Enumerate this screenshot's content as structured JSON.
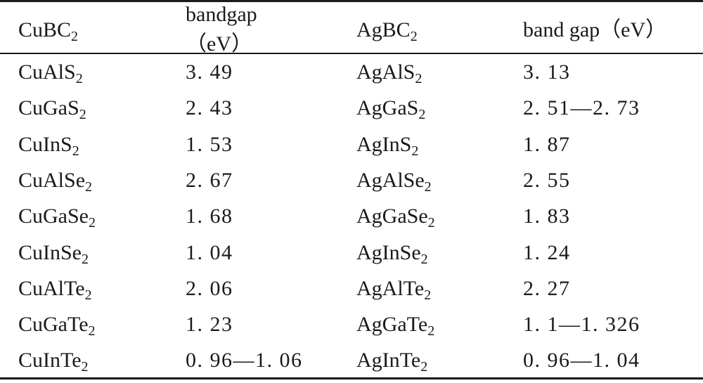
{
  "header": {
    "col1_base": "CuBC",
    "col1_sub": "2",
    "col2_line1": "bandgap",
    "col2_line2": "（eV）",
    "col3_base": "AgBC",
    "col3_sub": "2",
    "col4": "band gap（eV）"
  },
  "rows": [
    {
      "cu_base": "CuAlS",
      "cu_sub": "2",
      "cu_gap": "3. 49",
      "ag_base": "AgAlS",
      "ag_sub": "2",
      "ag_gap": "3. 13"
    },
    {
      "cu_base": "CuGaS",
      "cu_sub": "2",
      "cu_gap": "2. 43",
      "ag_base": "AgGaS",
      "ag_sub": "2",
      "ag_gap": "2. 51—2. 73"
    },
    {
      "cu_base": "CuInS",
      "cu_sub": "2",
      "cu_gap": "1. 53",
      "ag_base": "AgInS",
      "ag_sub": "2",
      "ag_gap": "1. 87"
    },
    {
      "cu_base": "CuAlSe",
      "cu_sub": "2",
      "cu_gap": "2. 67",
      "ag_base": "AgAlSe",
      "ag_sub": "2",
      "ag_gap": "2. 55"
    },
    {
      "cu_base": "CuGaSe",
      "cu_sub": "2",
      "cu_gap": "1. 68",
      "ag_base": "AgGaSe",
      "ag_sub": "2",
      "ag_gap": "1. 83"
    },
    {
      "cu_base": "CuInSe",
      "cu_sub": "2",
      "cu_gap": "1. 04",
      "ag_base": "AgInSe",
      "ag_sub": "2",
      "ag_gap": "1. 24"
    },
    {
      "cu_base": "CuAlTe",
      "cu_sub": "2",
      "cu_gap": "2. 06",
      "ag_base": "AgAlTe",
      "ag_sub": "2",
      "ag_gap": "2. 27"
    },
    {
      "cu_base": "CuGaTe",
      "cu_sub": "2",
      "cu_gap": "1. 23",
      "ag_base": "AgGaTe",
      "ag_sub": "2",
      "ag_gap": "1. 1—1. 326"
    },
    {
      "cu_base": "CuInTe",
      "cu_sub": "2",
      "cu_gap": "0. 96—1. 06",
      "ag_base": "AgInTe",
      "ag_sub": "2",
      "ag_gap": "0. 96—1. 04"
    }
  ]
}
